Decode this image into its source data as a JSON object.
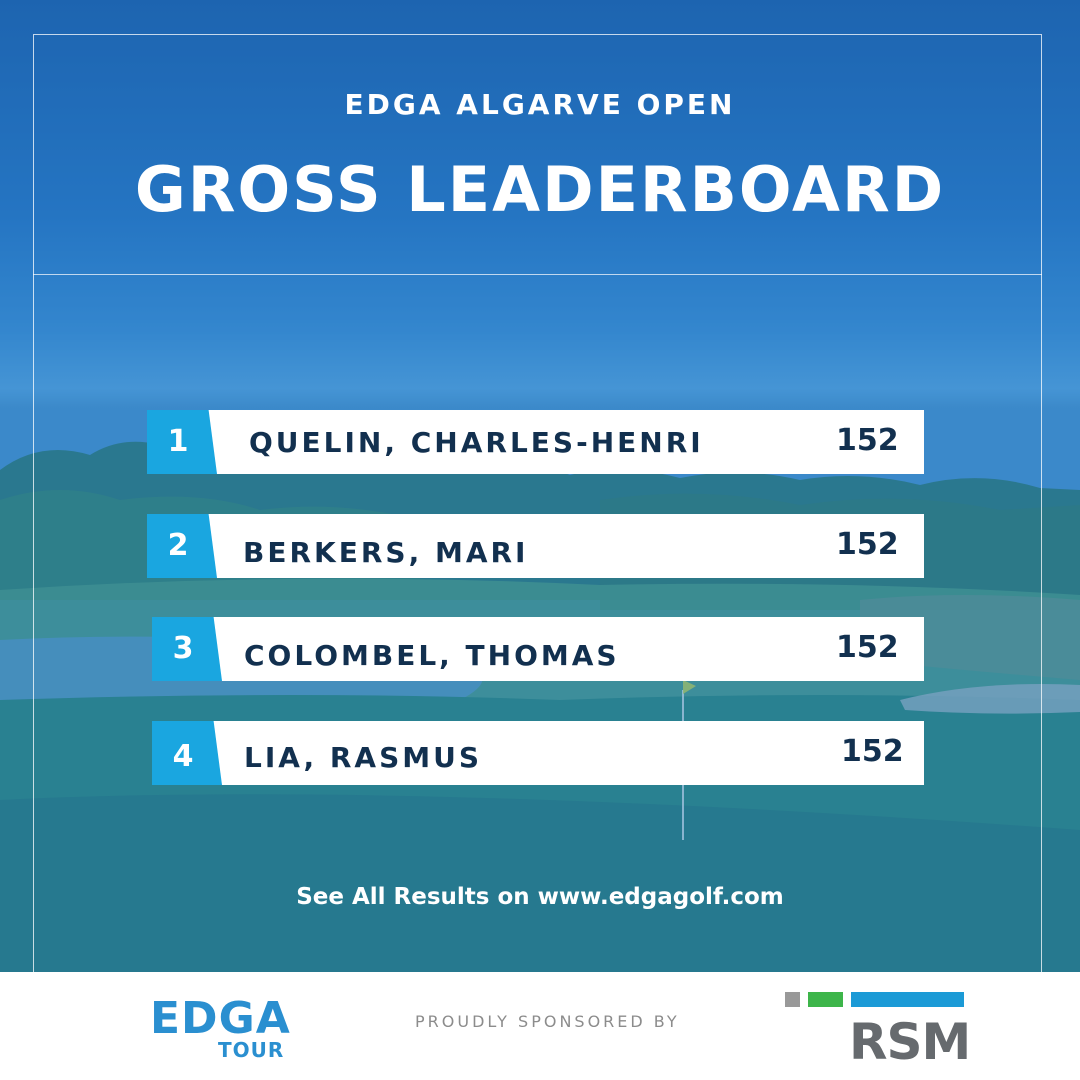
{
  "header": {
    "event_title": "EDGA ALGARVE OPEN",
    "board_title": "GROSS LEADERBOARD"
  },
  "leaderboard": [
    {
      "rank": "1",
      "name": "QUELIN, CHARLES-HENRI",
      "score": "152"
    },
    {
      "rank": "2",
      "name": "BERKERS, MARI",
      "score": "152"
    },
    {
      "rank": "3",
      "name": "COLOMBEL, THOMAS",
      "score": "152"
    },
    {
      "rank": "4",
      "name": "LIA, RASMUS",
      "score": "152"
    }
  ],
  "footer": {
    "results_link": "See All Results on www.edgagolf.com",
    "sponsor_label": "PROUDLY SPONSORED BY"
  },
  "logos": {
    "edga_word": "EDGA",
    "edga_tour": "TOUR",
    "rsm_word": "RSM"
  },
  "colors": {
    "accent": "#1aa6e0",
    "text_dark": "#12304f",
    "rsm_grey": "#999999",
    "rsm_green": "#3db54a",
    "rsm_blue": "#1b9ad6"
  }
}
